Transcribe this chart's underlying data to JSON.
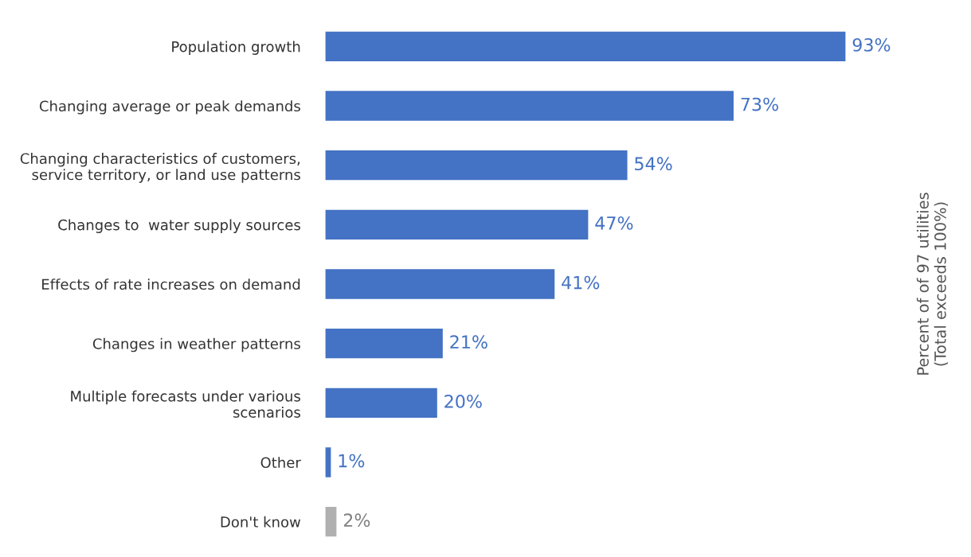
{
  "chart_data": {
    "type": "bar",
    "orientation": "horizontal",
    "ylabel": "Percent of of 97 utilities\n(Total exceeds 100%)",
    "categories": [
      "Population growth",
      "Changing average or peak demands",
      "Changing characteristics of customers,\nservice territory, or land use patterns",
      "Changes to  water supply sources",
      "Effects of rate increases on demand",
      "Changes in weather patterns",
      "Multiple forecasts under various\nscenarios",
      "Other",
      "Don't know"
    ],
    "values": [
      93,
      73,
      54,
      47,
      41,
      21,
      20,
      1,
      2
    ],
    "value_labels": [
      "93%",
      "73%",
      "54%",
      "47%",
      "41%",
      "21%",
      "20%",
      "1%",
      "2%"
    ],
    "colors": [
      "#4472c4",
      "#4472c4",
      "#4472c4",
      "#4472c4",
      "#4472c4",
      "#4472c4",
      "#4472c4",
      "#4472c4",
      "#b0b0b0"
    ],
    "grid": false,
    "legend": false
  }
}
